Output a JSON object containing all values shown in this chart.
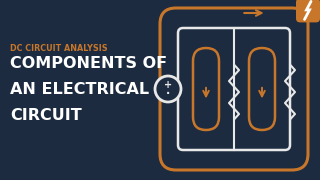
{
  "bg_color": "#1c2b40",
  "orange": "#c8762a",
  "white": "#e8e8e8",
  "subtitle": "DC CIRCUIT ANALYSIS",
  "title_lines": [
    "COMPONENTS OF",
    "AN ELECTRICAL",
    "CIRCUIT"
  ],
  "subtitle_color": "#c8762a",
  "title_color": "#ffffff",
  "subtitle_fontsize": 5.8,
  "title_fontsize": 11.5,
  "figw": 3.2,
  "figh": 1.8,
  "dpi": 100
}
